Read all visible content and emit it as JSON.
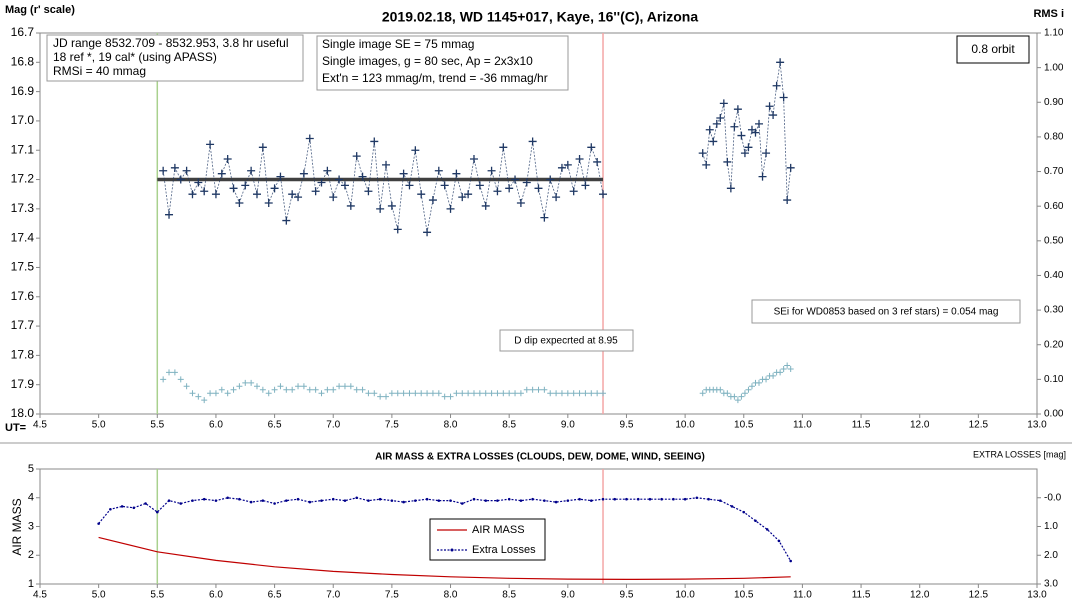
{
  "chart_data": [
    {
      "type": "line",
      "title": "2019.02.18, WD 1145+017, Kaye, 16''(C), Arizona",
      "ylabel": "Mag (r' scale)",
      "y2label": "RMS i",
      "xlabel": "UT=",
      "info_box": [
        "JD range 8532.709 - 8532.953, 3.8 hr useful",
        "18 ref *, 19 cal* (using APASS)",
        "RMSi = 40 mmag"
      ],
      "image_box": [
        "Single image SE = 75 mmag",
        "Single images, g = 80 sec, Ap = 2x3x10",
        "Ext'n = 123 mmag/m, trend = -36 mmag/hr"
      ],
      "orbit_label": "0.8 orbit",
      "sei_note": "SEi for WD0853 based on 3 ref stars) = 0.054 mag",
      "dip_note": "D dip expecrted at 8.95",
      "xlim": [
        4.5,
        13.0
      ],
      "xticks": [
        4.5,
        {
          "value": 5,
          "label": "5.0"
        },
        5.5,
        {
          "value": 6,
          "label": "6.0"
        },
        6.5,
        {
          "value": 7,
          "label": "7.0"
        },
        7.5,
        {
          "value": 8,
          "label": "8.0"
        },
        8.5,
        {
          "value": 9,
          "label": "9.0"
        },
        9.5,
        {
          "value": 10,
          "label": "10.0"
        },
        10.5,
        {
          "value": 11,
          "label": "11.0"
        },
        11.5,
        {
          "value": 12,
          "label": "12.0"
        },
        12.5,
        {
          "value": 13,
          "label": "13.0"
        }
      ],
      "ylim": [
        16.7,
        18.0
      ],
      "y_inverted": true,
      "yticks": [
        16.7,
        16.8,
        16.9,
        {
          "value": 17,
          "label": "17.0"
        },
        17.1,
        17.2,
        17.3,
        17.4,
        17.5,
        17.6,
        17.7,
        17.8,
        17.9,
        {
          "value": 18,
          "label": "18.0"
        }
      ],
      "y2lim": [
        0,
        1.1
      ],
      "y2ticks": [
        {
          "value": 0,
          "label": "0.00"
        },
        {
          "value": 0.1,
          "label": "0.10"
        },
        {
          "value": 0.2,
          "label": "0.20"
        },
        {
          "value": 0.3,
          "label": "0.30"
        },
        {
          "value": 0.4,
          "label": "0.40"
        },
        {
          "value": 0.5,
          "label": "0.50"
        },
        {
          "value": 0.6,
          "label": "0.60"
        },
        {
          "value": 0.7,
          "label": "0.70"
        },
        {
          "value": 0.8,
          "label": "0.80"
        },
        {
          "value": 0.9,
          "label": "0.90"
        },
        {
          "value": 1.0,
          "label": "1.00"
        },
        {
          "value": 1.1,
          "label": "1.10"
        }
      ],
      "vlines": [
        {
          "value": 5.5,
          "color": "#a9d18e"
        },
        {
          "value": 9.3,
          "color": "#f4a6a6"
        }
      ],
      "mean_line": {
        "value": 17.2,
        "x": [
          5.5,
          9.3
        ],
        "color": "#404040"
      },
      "x": [
        5.55,
        5.6,
        5.65,
        5.7,
        5.75,
        5.8,
        5.85,
        5.9,
        5.95,
        6.0,
        6.05,
        6.1,
        6.15,
        6.2,
        6.25,
        6.3,
        6.35,
        6.4,
        6.45,
        6.5,
        6.55,
        6.6,
        6.65,
        6.7,
        6.75,
        6.8,
        6.85,
        6.9,
        6.95,
        7.0,
        7.05,
        7.1,
        7.15,
        7.2,
        7.25,
        7.3,
        7.35,
        7.4,
        7.45,
        7.5,
        7.55,
        7.6,
        7.65,
        7.7,
        7.75,
        7.8,
        7.85,
        7.9,
        7.95,
        8.0,
        8.05,
        8.1,
        8.15,
        8.2,
        8.25,
        8.3,
        8.35,
        8.4,
        8.45,
        8.5,
        8.55,
        8.6,
        8.65,
        8.7,
        8.75,
        8.8,
        8.85,
        8.9,
        8.95,
        9.0,
        9.05,
        9.1,
        9.15,
        9.2,
        9.25,
        9.3,
        9.7,
        10.15,
        10.18,
        10.21,
        10.24,
        10.27,
        10.3,
        10.33,
        10.36,
        10.39,
        10.42,
        10.45,
        10.48,
        10.51,
        10.54,
        10.57,
        10.6,
        10.63,
        10.66,
        10.69,
        10.72,
        10.75,
        10.78,
        10.81,
        10.84,
        10.87,
        10.9
      ],
      "series": [
        {
          "color": "#1f3864",
          "marker": "cross",
          "line": true,
          "axis": "y",
          "values": [
            17.17,
            17.32,
            17.16,
            17.2,
            17.17,
            17.25,
            17.21,
            17.24,
            17.08,
            17.25,
            17.18,
            17.13,
            17.23,
            17.28,
            17.22,
            17.17,
            17.25,
            17.09,
            17.28,
            17.23,
            17.19,
            17.34,
            17.25,
            17.26,
            17.18,
            17.06,
            17.24,
            17.21,
            17.17,
            17.26,
            17.2,
            17.22,
            17.29,
            17.12,
            17.19,
            17.24,
            17.07,
            17.3,
            17.15,
            17.29,
            17.37,
            17.18,
            17.22,
            17.1,
            17.25,
            17.38,
            17.27,
            17.17,
            17.22,
            17.3,
            17.18,
            17.26,
            17.25,
            17.13,
            17.22,
            17.29,
            17.17,
            17.24,
            17.09,
            17.23,
            17.2,
            17.28,
            17.21,
            17.07,
            17.23,
            17.33,
            17.2,
            17.26,
            17.16,
            17.15,
            17.24,
            17.13,
            17.22,
            17.09,
            17.14,
            17.25,
            null,
            17.11,
            17.15,
            17.03,
            17.07,
            17.01,
            16.99,
            16.94,
            17.14,
            17.23,
            17.02,
            16.96,
            17.05,
            17.11,
            17.09,
            17.03,
            17.04,
            17.01,
            17.19,
            17.11,
            16.95,
            16.98,
            16.88,
            16.8,
            16.92,
            17.27,
            17.16
          ]
        },
        {
          "color": "#7fb2c0",
          "marker": "cross",
          "line": false,
          "axis": "y2",
          "values": [
            0.1,
            0.12,
            0.12,
            0.1,
            0.08,
            0.06,
            0.05,
            0.04,
            0.06,
            0.06,
            0.07,
            0.06,
            0.07,
            0.08,
            0.09,
            0.09,
            0.08,
            0.07,
            0.06,
            0.07,
            0.08,
            0.07,
            0.07,
            0.08,
            0.08,
            0.07,
            0.07,
            0.06,
            0.07,
            0.07,
            0.08,
            0.08,
            0.08,
            0.07,
            0.07,
            0.06,
            0.06,
            0.05,
            0.05,
            0.06,
            0.06,
            0.06,
            0.06,
            0.06,
            0.06,
            0.06,
            0.06,
            0.06,
            0.05,
            0.05,
            0.06,
            0.06,
            0.06,
            0.06,
            0.06,
            0.06,
            0.06,
            0.06,
            0.06,
            0.06,
            0.06,
            0.06,
            0.07,
            0.07,
            0.07,
            0.07,
            0.06,
            0.06,
            0.06,
            0.06,
            0.06,
            0.06,
            0.06,
            0.06,
            0.06,
            0.06,
            null,
            0.06,
            0.07,
            0.07,
            0.07,
            0.07,
            0.07,
            0.06,
            0.06,
            0.05,
            0.05,
            0.04,
            0.05,
            0.06,
            0.07,
            0.08,
            0.09,
            0.09,
            0.1,
            0.1,
            0.11,
            0.11,
            0.12,
            0.12,
            0.13,
            0.14,
            0.13
          ]
        }
      ]
    },
    {
      "type": "line",
      "title": "AIR MASS & EXTRA LOSSES (CLOUDS, DEW, DOME, WIND, SEEING)",
      "ylabel": "AIR MASS",
      "y2label": "EXTRA LOSSES [mag]",
      "xlim": [
        4.5,
        13.0
      ],
      "xticks": [
        4.5,
        {
          "value": 5,
          "label": "5.0"
        },
        5.5,
        {
          "value": 6,
          "label": "6.0"
        },
        6.5,
        {
          "value": 7,
          "label": "7.0"
        },
        7.5,
        {
          "value": 8,
          "label": "8.0"
        },
        8.5,
        {
          "value": 9,
          "label": "9.0"
        },
        9.5,
        {
          "value": 10,
          "label": "10.0"
        },
        10.5,
        {
          "value": 11,
          "label": "11.0"
        },
        11.5,
        {
          "value": 12,
          "label": "12.0"
        },
        12.5,
        {
          "value": 13,
          "label": "13.0"
        }
      ],
      "ylim": [
        1,
        5
      ],
      "yticks": [
        1,
        2,
        3,
        4,
        5
      ],
      "y2lim": [
        -1,
        3
      ],
      "y2_inverted": true,
      "y2ticks": [
        {
          "value": 0,
          "label": "-0.0"
        },
        {
          "value": 1,
          "label": "1.0"
        },
        {
          "value": 2,
          "label": "2.0"
        },
        {
          "value": 3,
          "label": "3.0"
        }
      ],
      "vlines": [
        {
          "value": 5.5,
          "color": "#a9d18e"
        },
        {
          "value": 9.3,
          "color": "#f4a6a6"
        }
      ],
      "series": [
        {
          "name": "AIR MASS",
          "color": "#c00000",
          "line": true,
          "axis": "y",
          "x": [
            5.0,
            5.5,
            6.0,
            6.5,
            7.0,
            7.5,
            8.0,
            8.5,
            9.0,
            9.5,
            10.0,
            10.5,
            10.9
          ],
          "values": [
            2.62,
            2.12,
            1.82,
            1.6,
            1.44,
            1.33,
            1.25,
            1.2,
            1.17,
            1.16,
            1.17,
            1.2,
            1.25
          ]
        },
        {
          "name": "Extra Losses",
          "color": "#00008b",
          "line": true,
          "dotted": true,
          "marker": "dot",
          "axis": "y2",
          "x": [
            5.0,
            5.1,
            5.2,
            5.3,
            5.4,
            5.5,
            5.6,
            5.7,
            5.8,
            5.9,
            6.0,
            6.1,
            6.2,
            6.3,
            6.4,
            6.5,
            6.6,
            6.7,
            6.8,
            6.9,
            7.0,
            7.1,
            7.2,
            7.3,
            7.4,
            7.5,
            7.6,
            7.7,
            7.8,
            7.9,
            8.0,
            8.1,
            8.2,
            8.3,
            8.4,
            8.5,
            8.6,
            8.7,
            8.8,
            8.9,
            9.0,
            9.1,
            9.2,
            9.3,
            9.4,
            9.5,
            9.6,
            9.7,
            9.8,
            9.9,
            10.0,
            10.1,
            10.2,
            10.3,
            10.4,
            10.5,
            10.6,
            10.7,
            10.8,
            10.9
          ],
          "values": [
            0.9,
            0.4,
            0.3,
            0.35,
            0.2,
            0.5,
            0.1,
            0.2,
            0.1,
            0.05,
            0.1,
            0.0,
            0.05,
            0.15,
            0.1,
            0.2,
            0.1,
            0.05,
            0.15,
            0.1,
            0.05,
            0.1,
            0.0,
            0.1,
            0.05,
            0.1,
            0.15,
            0.1,
            0.05,
            0.1,
            0.1,
            0.2,
            0.05,
            0.1,
            0.1,
            0.05,
            0.1,
            0.05,
            0.1,
            0.15,
            0.1,
            0.05,
            0.1,
            0.05,
            0.05,
            0.05,
            0.05,
            0.05,
            0.05,
            0.05,
            0.05,
            0.0,
            0.05,
            0.1,
            0.3,
            0.5,
            0.8,
            1.1,
            1.5,
            2.2
          ]
        }
      ]
    }
  ]
}
